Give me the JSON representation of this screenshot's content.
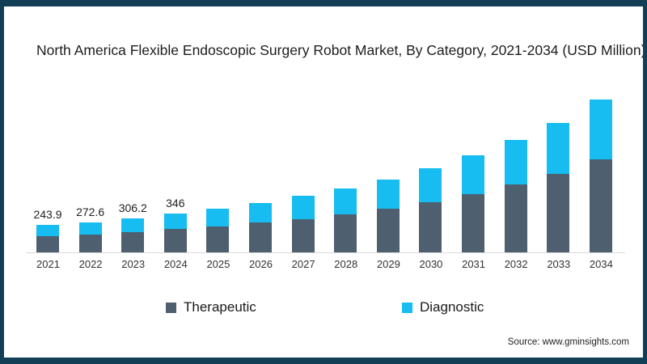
{
  "frame": {
    "border_color": "#123e56",
    "background": "#ffffff"
  },
  "chart_data": {
    "type": "bar",
    "stacked": true,
    "title": "North America Flexible Endoscopic Surgery Robot Market, By Category, 2021-2034 (USD Million)",
    "xlabel": "",
    "ylabel": "",
    "categories": [
      "2021",
      "2022",
      "2023",
      "2024",
      "2025",
      "2026",
      "2027",
      "2028",
      "2029",
      "2030",
      "2031",
      "2032",
      "2033",
      "2034"
    ],
    "series": [
      {
        "name": "Therapeutic",
        "color": "#4e5f6f",
        "values": [
          146.0,
          163.0,
          184.0,
          210.0,
          233,
          267,
          300,
          340,
          392,
          452,
          525,
          612,
          706,
          833
        ]
      },
      {
        "name": "Diagnostic",
        "color": "#17bdf0",
        "values": [
          97.9,
          109.6,
          122.2,
          136.0,
          156,
          175,
          207,
          233,
          260,
          302,
          349,
          398,
          458,
          537
        ]
      }
    ],
    "totals": [
      243.9,
      272.6,
      306.2,
      346,
      389,
      442,
      507,
      573,
      652,
      754,
      874,
      1010,
      1164,
      1370
    ],
    "totals_labels": [
      "243.9",
      "272.6",
      "306.2",
      "346",
      "",
      "",
      "",
      "",
      "",
      "",
      "",
      "",
      "",
      ""
    ],
    "ylim": [
      0,
      1450
    ],
    "grid": false,
    "legend_position": "bottom",
    "axis_line_color": "#d9d9d9"
  },
  "source": {
    "text": "Source: www.gminsights.com"
  }
}
